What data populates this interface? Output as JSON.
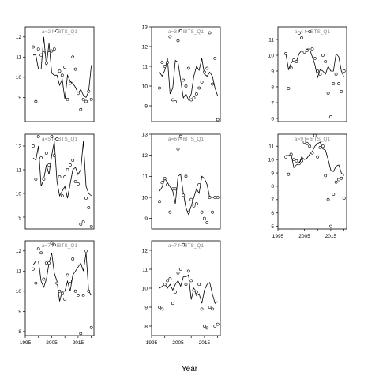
{
  "chart_data": {
    "type": "line",
    "xlabel": "Year",
    "xlim": [
      1995,
      2021
    ],
    "xticks": [
      1995,
      2005,
      2015
    ],
    "x_tick_labels": [
      "1995",
      "2005",
      "2015"
    ],
    "x_minor_ticks": [
      2000,
      2010,
      2020
    ],
    "grid": false,
    "marker": "open circles with fitted line",
    "panels": [
      {
        "label": "a=2 f=IBTS_Q1",
        "col": 0,
        "row": 0,
        "ylim": [
          7.8,
          12.5
        ],
        "yticks": [
          9,
          10,
          11,
          12
        ],
        "x": [
          1998,
          1999,
          2000,
          2001,
          2002,
          2003,
          2004,
          2005,
          2006,
          2007,
          2008,
          2009,
          2010,
          2011,
          2012,
          2013,
          2014,
          2015,
          2016,
          2017,
          2018,
          2019,
          2020
        ],
        "points": [
          11.5,
          8.8,
          11.4,
          11.1,
          11.2,
          10.7,
          11.2,
          11.3,
          11.4,
          12.3,
          10.3,
          10.1,
          10.5,
          8.9,
          9.7,
          11.0,
          10.4,
          9.2,
          8.4,
          8.9,
          8.8,
          9.3,
          8.9
        ],
        "line": [
          11.1,
          11.1,
          10.4,
          10.4,
          12.0,
          10.6,
          11.7,
          10.2,
          10.1,
          10.1,
          9.6,
          9.9,
          8.9,
          10.1,
          9.8,
          9.7,
          9.5,
          9.2,
          9.4,
          9.1,
          9.0,
          9.3,
          10.6
        ]
      },
      {
        "label": "a=3 f=IBTS_Q1",
        "col": 1,
        "row": 0,
        "ylim": [
          8.2,
          13.0
        ],
        "yticks": [
          9,
          10,
          11,
          12,
          13
        ],
        "x": [
          1998,
          1999,
          2000,
          2001,
          2002,
          2003,
          2004,
          2005,
          2006,
          2007,
          2008,
          2009,
          2010,
          2011,
          2012,
          2013,
          2014,
          2015,
          2016,
          2017,
          2018,
          2019,
          2020
        ],
        "points": [
          9.9,
          11.2,
          11.0,
          11.2,
          12.5,
          9.3,
          9.2,
          12.3,
          12.8,
          10.3,
          10.0,
          10.9,
          9.3,
          9.4,
          9.6,
          9.9,
          10.2,
          10.7,
          10.9,
          12.7,
          10.1,
          11.4,
          8.3
        ],
        "line": [
          10.7,
          10.5,
          10.8,
          11.4,
          9.6,
          9.9,
          11.3,
          11.2,
          10.3,
          9.4,
          9.6,
          9.3,
          9.6,
          10.5,
          11.0,
          10.8,
          11.4,
          10.6,
          10.5,
          10.7,
          10.5,
          9.9,
          9.5
        ]
      },
      {
        "label": "a=4 f=IBTS_Q1",
        "col": 2,
        "row": 0,
        "ylim": [
          5.8,
          11.8
        ],
        "yticks": [
          6,
          7,
          8,
          9,
          10,
          11
        ],
        "x": [
          1998,
          1999,
          2000,
          2001,
          2002,
          2003,
          2004,
          2005,
          2006,
          2007,
          2008,
          2009,
          2010,
          2011,
          2012,
          2013,
          2014,
          2015,
          2016,
          2017,
          2018,
          2019,
          2020
        ],
        "points": [
          10.1,
          7.9,
          9.2,
          9.7,
          9.6,
          11.4,
          11.1,
          10.2,
          10.3,
          11.5,
          10.4,
          9.8,
          9.0,
          8.8,
          10.0,
          9.6,
          7.6,
          6.1,
          8.2,
          8.8,
          8.2,
          7.7,
          9.0
        ],
        "line": [
          10.1,
          9.1,
          9.5,
          9.7,
          9.6,
          10.1,
          10.3,
          10.2,
          10.4,
          10.4,
          9.9,
          9.4,
          8.6,
          9.1,
          9.0,
          8.8,
          9.3,
          9.0,
          9.0,
          10.1,
          9.9,
          9.0,
          8.6
        ]
      },
      {
        "label": "a=5 f=IBTS_Q1",
        "col": 0,
        "row": 1,
        "ylim": [
          8.5,
          12.5
        ],
        "yticks": [
          9,
          10,
          11,
          12
        ],
        "x": [
          1998,
          1999,
          2000,
          2001,
          2002,
          2003,
          2004,
          2005,
          2006,
          2007,
          2008,
          2009,
          2010,
          2011,
          2012,
          2013,
          2014,
          2015,
          2016,
          2017,
          2018,
          2019,
          2020
        ],
        "points": [
          12.0,
          10.6,
          12.4,
          11.5,
          10.6,
          11.7,
          11.2,
          12.4,
          11.6,
          12.3,
          10.7,
          9.9,
          10.7,
          11.0,
          11.2,
          11.4,
          10.5,
          10.4,
          8.7,
          8.8,
          9.8,
          9.4,
          8.6
        ],
        "line": [
          11.5,
          11.4,
          12.0,
          10.3,
          10.6,
          11.2,
          10.8,
          11.6,
          12.2,
          10.5,
          9.9,
          10.1,
          10.3,
          9.8,
          10.4,
          11.0,
          11.1,
          10.8,
          11.0,
          12.2,
          10.3,
          10.0,
          9.9
        ]
      },
      {
        "label": "a=6 f=IBTS_Q1",
        "col": 1,
        "row": 1,
        "ylim": [
          8.5,
          13.0
        ],
        "yticks": [
          9,
          10,
          11,
          12,
          13
        ],
        "x": [
          1998,
          1999,
          2000,
          2001,
          2002,
          2003,
          2004,
          2005,
          2006,
          2007,
          2008,
          2009,
          2010,
          2011,
          2012,
          2013,
          2014,
          2015,
          2016,
          2017,
          2018,
          2019,
          2020
        ],
        "points": [
          9.8,
          10.7,
          10.9,
          10.6,
          9.3,
          10.4,
          10.4,
          12.3,
          12.9,
          10.1,
          11.0,
          9.3,
          9.9,
          9.6,
          9.7,
          10.6,
          9.3,
          9.0,
          8.8,
          10.0,
          9.3,
          10.0,
          10.0
        ],
        "line": [
          10.3,
          10.5,
          10.9,
          10.7,
          10.5,
          10.3,
          9.7,
          11.0,
          11.1,
          10.2,
          9.5,
          9.2,
          9.6,
          10.0,
          10.4,
          10.2,
          11.0,
          10.9,
          10.6,
          10.0,
          10.0,
          10.0,
          10.0
        ]
      },
      {
        "label": "a=9 f=IBTS_Q1",
        "col": 2,
        "row": 1,
        "ylim": [
          4.8,
          11.9
        ],
        "yticks": [
          5,
          6,
          7,
          8,
          9,
          10,
          11
        ],
        "x": [
          1998,
          1999,
          2000,
          2001,
          2002,
          2003,
          2004,
          2005,
          2006,
          2007,
          2008,
          2009,
          2010,
          2011,
          2012,
          2013,
          2014,
          2015,
          2016,
          2017,
          2018,
          2019,
          2020
        ],
        "points": [
          10.2,
          8.9,
          10.4,
          10.0,
          9.9,
          9.7,
          9.9,
          11.3,
          11.2,
          11.0,
          10.5,
          11.8,
          10.2,
          10.9,
          11.0,
          8.8,
          7.0,
          5.0,
          7.4,
          8.3,
          8.5,
          8.6,
          7.1
        ],
        "line": [
          10.3,
          10.3,
          10.4,
          9.4,
          9.6,
          9.7,
          10.2,
          10.0,
          10.1,
          10.4,
          10.6,
          11.0,
          11.2,
          11.3,
          10.8,
          10.7,
          10.0,
          9.2,
          9.1,
          9.5,
          9.6,
          9.0,
          8.8
        ]
      },
      {
        "label": "a=7 f=IBTS_Q1",
        "col": 0,
        "row": 2,
        "ylim": [
          7.8,
          12.5
        ],
        "yticks": [
          8,
          9,
          10,
          11,
          12
        ],
        "x": [
          1998,
          1999,
          2000,
          2001,
          2002,
          2003,
          2004,
          2005,
          2006,
          2007,
          2008,
          2009,
          2010,
          2011,
          2012,
          2013,
          2014,
          2015,
          2016,
          2017,
          2018,
          2019,
          2020
        ],
        "points": [
          11.1,
          10.4,
          12.1,
          11.9,
          10.6,
          11.4,
          11.4,
          12.4,
          12.3,
          10.4,
          10.0,
          9.9,
          9.6,
          10.8,
          10.5,
          11.6,
          10.0,
          9.8,
          7.9,
          9.8,
          12.0,
          10.0,
          8.2
        ],
        "line": [
          11.3,
          11.5,
          11.5,
          10.5,
          10.2,
          10.6,
          11.4,
          11.9,
          10.9,
          10.5,
          9.5,
          10.0,
          10.0,
          10.5,
          10.0,
          10.8,
          11.0,
          11.2,
          11.4,
          11.0,
          11.9,
          10.0,
          9.8
        ]
      },
      {
        "label": "a=7 f=IBTS_Q1",
        "col": 1,
        "row": 2,
        "ylim": [
          7.5,
          12.5
        ],
        "yticks": [
          8,
          9,
          10,
          11,
          12
        ],
        "x": [
          1998,
          1999,
          2000,
          2001,
          2002,
          2003,
          2004,
          2005,
          2006,
          2007,
          2008,
          2009,
          2010,
          2011,
          2012,
          2013,
          2014,
          2015,
          2016,
          2017,
          2018,
          2019,
          2020
        ],
        "points": [
          9.0,
          8.9,
          10.2,
          10.4,
          10.5,
          9.2,
          9.8,
          10.8,
          11.0,
          12.3,
          10.2,
          10.9,
          10.4,
          9.9,
          9.8,
          10.2,
          8.9,
          8.0,
          7.9,
          9.0,
          8.9,
          8.0,
          8.1
        ],
        "line": [
          10.0,
          10.1,
          10.2,
          10.0,
          10.2,
          9.9,
          10.2,
          10.4,
          10.1,
          10.6,
          10.6,
          10.7,
          9.4,
          10.0,
          9.6,
          9.7,
          9.2,
          9.9,
          10.2,
          10.3,
          9.7,
          9.2,
          9.3
        ]
      }
    ]
  }
}
